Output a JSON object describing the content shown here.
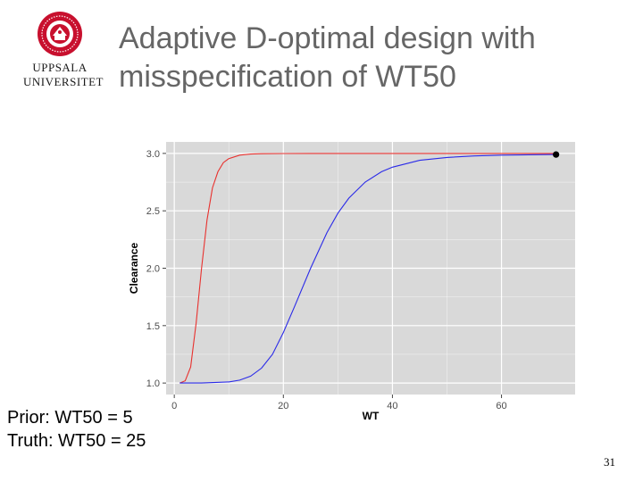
{
  "logo": {
    "line1": "UPPSALA",
    "line2": "UNIVERSITET",
    "seal_color": "#c8102e"
  },
  "title": {
    "line1": "Adaptive D-optimal design with",
    "line2": "misspecification of WT50"
  },
  "chart_data": {
    "type": "line",
    "xlabel": "WT",
    "ylabel": "Clearance",
    "xlim": [
      -1.5,
      73.5
    ],
    "ylim": [
      0.9,
      3.1
    ],
    "xticks": [
      0,
      20,
      40,
      60
    ],
    "yticks": [
      1.0,
      1.5,
      2.0,
      2.5,
      3.0
    ],
    "ytick_labels": [
      "1.0",
      "1.5",
      "2.0",
      "2.5",
      "3.0"
    ],
    "background": "#d9d9d9",
    "gridline_color": "#ffffff",
    "grid": true,
    "series": [
      {
        "color": "#e8312e",
        "x": [
          1,
          2,
          3,
          4,
          5,
          6,
          7,
          8,
          9,
          10,
          12,
          14,
          16,
          20,
          25,
          30,
          40,
          50,
          60,
          70
        ],
        "y": [
          1.0,
          1.02,
          1.14,
          1.52,
          2.0,
          2.42,
          2.7,
          2.84,
          2.92,
          2.955,
          2.985,
          2.994,
          2.997,
          2.999,
          3.0,
          3.0,
          3.0,
          3.0,
          3.0,
          3.0
        ]
      },
      {
        "color": "#2a2ae8",
        "x": [
          1,
          5,
          10,
          12,
          14,
          16,
          18,
          20,
          22,
          25,
          28,
          30,
          32,
          35,
          38,
          40,
          45,
          50,
          55,
          60,
          65,
          70
        ],
        "y": [
          1.0,
          1.0,
          1.01,
          1.025,
          1.06,
          1.13,
          1.25,
          1.44,
          1.66,
          2.0,
          2.31,
          2.48,
          2.61,
          2.75,
          2.84,
          2.88,
          2.94,
          2.965,
          2.978,
          2.985,
          2.988,
          2.99
        ]
      }
    ],
    "points": [
      {
        "x": 70,
        "y": 2.99,
        "color": "#000000"
      }
    ]
  },
  "caption": {
    "line1": "Prior: WT50 = 5",
    "line2": "Truth: WT50 = 25"
  },
  "slide_number": "31"
}
